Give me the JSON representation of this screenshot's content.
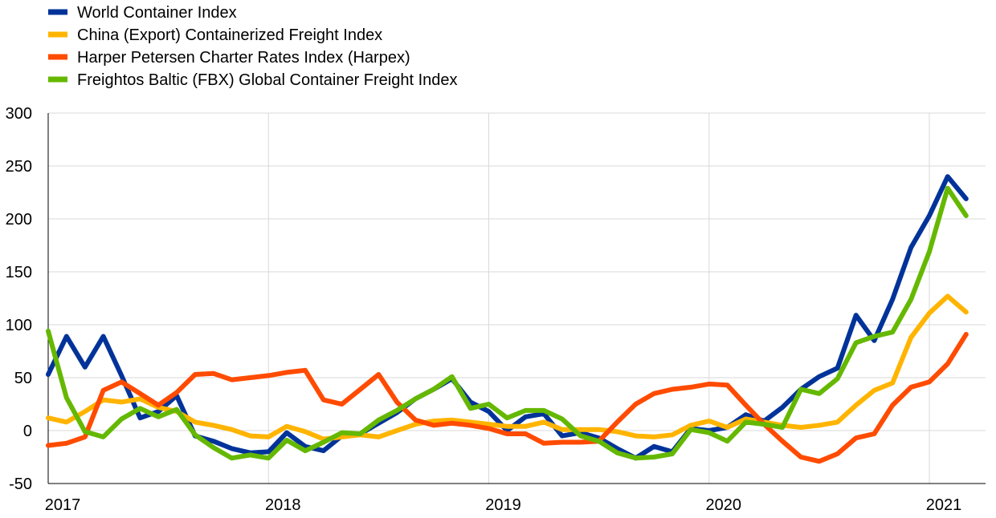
{
  "chart_data": {
    "type": "line",
    "title": "",
    "xlabel": "",
    "ylabel": "",
    "ylim": [
      -50,
      300
    ],
    "yticks": [
      -50,
      0,
      50,
      100,
      150,
      200,
      250,
      300
    ],
    "xlim": [
      2017,
      2021.25
    ],
    "xticks": [
      2017,
      2018,
      2019,
      2020,
      2021
    ],
    "xtick_labels": [
      "2017",
      "2018",
      "2019",
      "2020",
      "2021"
    ],
    "grid": "vertical and horizontal",
    "legend_placement": "top-left",
    "series": [
      {
        "name": "World Container Index",
        "color": "#003399",
        "x": [
          2017.0,
          2017.083,
          2017.167,
          2017.25,
          2017.333,
          2017.417,
          2017.5,
          2017.583,
          2017.667,
          2017.75,
          2017.833,
          2017.917,
          2018.0,
          2018.083,
          2018.167,
          2018.25,
          2018.333,
          2018.417,
          2018.5,
          2018.583,
          2018.667,
          2018.75,
          2018.833,
          2018.917,
          2019.0,
          2019.083,
          2019.167,
          2019.25,
          2019.333,
          2019.417,
          2019.5,
          2019.583,
          2019.667,
          2019.75,
          2019.833,
          2019.917,
          2020.0,
          2020.083,
          2020.167,
          2020.25,
          2020.333,
          2020.417,
          2020.5,
          2020.583,
          2020.667,
          2020.75,
          2020.833,
          2020.917,
          2021.0,
          2021.083,
          2021.167
        ],
        "y": [
          53,
          89,
          60,
          89,
          52,
          12,
          18,
          33,
          -5,
          -10,
          -17,
          -21,
          -20,
          -2,
          -15,
          -19,
          -5,
          -3,
          7,
          17,
          30,
          39,
          49,
          27,
          18,
          0,
          13,
          16,
          -5,
          -2,
          -7,
          -17,
          -26,
          -15,
          -20,
          2,
          0,
          3,
          15,
          9,
          22,
          39,
          51,
          59,
          109,
          85,
          124,
          173,
          203,
          240,
          219
        ]
      },
      {
        "name": "China (Export) Containerized Freight Index",
        "color": "#ffb400",
        "x": [
          2017.0,
          2017.083,
          2017.167,
          2017.25,
          2017.333,
          2017.417,
          2017.5,
          2017.583,
          2017.667,
          2017.75,
          2017.833,
          2017.917,
          2018.0,
          2018.083,
          2018.167,
          2018.25,
          2018.333,
          2018.417,
          2018.5,
          2018.583,
          2018.667,
          2018.75,
          2018.833,
          2018.917,
          2019.0,
          2019.083,
          2019.167,
          2019.25,
          2019.333,
          2019.417,
          2019.5,
          2019.583,
          2019.667,
          2019.75,
          2019.833,
          2019.917,
          2020.0,
          2020.083,
          2020.167,
          2020.25,
          2020.333,
          2020.417,
          2020.5,
          2020.583,
          2020.667,
          2020.75,
          2020.833,
          2020.917,
          2021.0,
          2021.083,
          2021.167
        ],
        "y": [
          12,
          8,
          18,
          29,
          27,
          30,
          22,
          18,
          8,
          5,
          1,
          -5,
          -6,
          4,
          -1,
          -8,
          -6,
          -4,
          -6,
          0,
          6,
          9,
          10,
          8,
          6,
          4,
          4,
          8,
          1,
          1,
          1,
          -1,
          -5,
          -6,
          -4,
          5,
          9,
          3,
          11,
          8,
          5,
          3,
          5,
          8,
          24,
          38,
          45,
          88,
          111,
          127,
          112
        ]
      },
      {
        "name": "Harper Petersen Charter Rates Index (Harpex)",
        "color": "#ff4b00",
        "x": [
          2017.0,
          2017.083,
          2017.167,
          2017.25,
          2017.333,
          2017.417,
          2017.5,
          2017.583,
          2017.667,
          2017.75,
          2017.833,
          2017.917,
          2018.0,
          2018.083,
          2018.167,
          2018.25,
          2018.333,
          2018.417,
          2018.5,
          2018.583,
          2018.667,
          2018.75,
          2018.833,
          2018.917,
          2019.0,
          2019.083,
          2019.167,
          2019.25,
          2019.333,
          2019.417,
          2019.5,
          2019.583,
          2019.667,
          2019.75,
          2019.833,
          2019.917,
          2020.0,
          2020.083,
          2020.167,
          2020.25,
          2020.333,
          2020.417,
          2020.5,
          2020.583,
          2020.667,
          2020.75,
          2020.833,
          2020.917,
          2021.0,
          2021.083,
          2021.167
        ],
        "y": [
          -14,
          -12,
          -6,
          38,
          46,
          35,
          24,
          36,
          53,
          54,
          48,
          50,
          52,
          55,
          57,
          29,
          25,
          39,
          53,
          27,
          10,
          5,
          7,
          5,
          2,
          -3,
          -3,
          -12,
          -11,
          -11,
          -10,
          8,
          25,
          35,
          39,
          41,
          44,
          43,
          24,
          6,
          -10,
          -25,
          -29,
          -22,
          -7,
          -3,
          24,
          41,
          46,
          63,
          91
        ]
      },
      {
        "name": "Freightos Baltic (FBX) Global Container Freight Index",
        "color": "#65b800",
        "x": [
          2017.0,
          2017.083,
          2017.167,
          2017.25,
          2017.333,
          2017.417,
          2017.5,
          2017.583,
          2017.667,
          2017.75,
          2017.833,
          2017.917,
          2018.0,
          2018.083,
          2018.167,
          2018.25,
          2018.333,
          2018.417,
          2018.5,
          2018.583,
          2018.667,
          2018.75,
          2018.833,
          2018.917,
          2019.0,
          2019.083,
          2019.167,
          2019.25,
          2019.333,
          2019.417,
          2019.5,
          2019.583,
          2019.667,
          2019.75,
          2019.833,
          2019.917,
          2020.0,
          2020.083,
          2020.167,
          2020.25,
          2020.333,
          2020.417,
          2020.5,
          2020.583,
          2020.667,
          2020.75,
          2020.833,
          2020.917,
          2021.0,
          2021.083,
          2021.167
        ],
        "y": [
          94,
          31,
          -1,
          -6,
          11,
          21,
          13,
          20,
          -4,
          -16,
          -26,
          -23,
          -26,
          -9,
          -19,
          -11,
          -2,
          -3,
          10,
          19,
          30,
          39,
          51,
          21,
          25,
          12,
          19,
          19,
          11,
          -5,
          -10,
          -21,
          -26,
          -25,
          -22,
          1,
          -2,
          -10,
          8,
          6,
          3,
          39,
          35,
          49,
          83,
          89,
          93,
          124,
          169,
          229,
          203
        ]
      }
    ]
  }
}
